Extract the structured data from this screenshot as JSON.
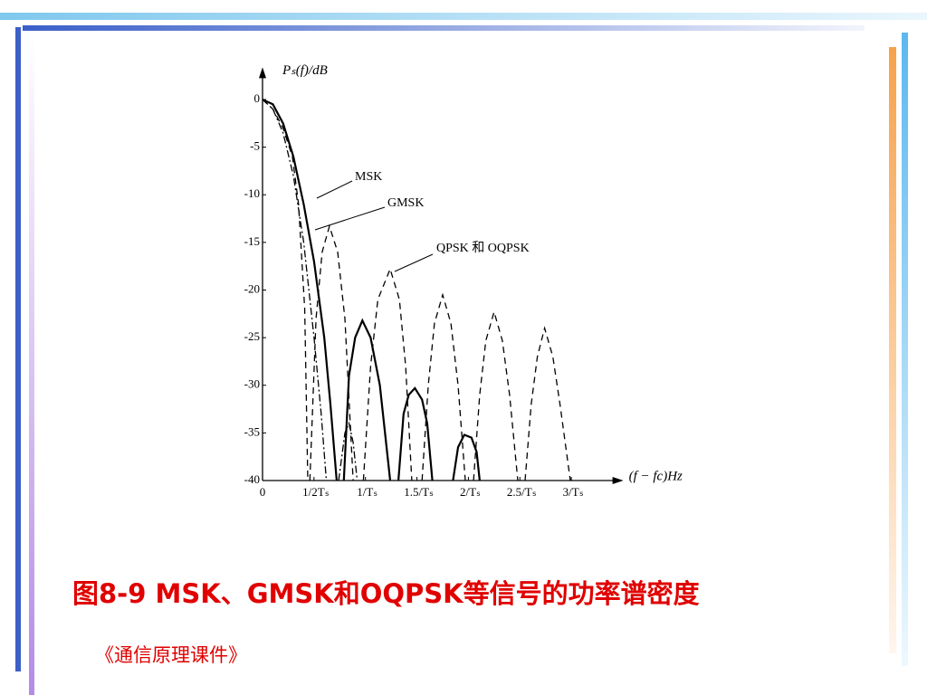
{
  "chart_data": {
    "type": "line",
    "y_label": "Pₛ(f)/dB",
    "x_label": "(f − fc)Hz",
    "xlim": [
      0,
      3.4
    ],
    "ylim": [
      -40,
      3
    ],
    "xticks": [
      0,
      {
        "value": 0.5,
        "label": "1/2Tₛ"
      },
      {
        "value": 1,
        "label": "1/Tₛ"
      },
      {
        "value": 1.5,
        "label": "1.5/Tₛ"
      },
      {
        "value": 2,
        "label": "2/Tₛ"
      },
      {
        "value": 2.5,
        "label": "2.5/Tₛ"
      },
      {
        "value": 3,
        "label": "3/Tₛ"
      }
    ],
    "yticks": [
      0,
      -5,
      -10,
      -15,
      -20,
      -25,
      -30,
      -35,
      -40
    ],
    "series": [
      {
        "name": "MSK",
        "color": "#000000",
        "dash": "solid",
        "x": [
          0,
          0.1,
          0.2,
          0.3,
          0.4,
          0.5,
          0.6,
          0.66,
          0.72,
          null,
          0.79,
          0.84,
          0.9,
          0.97,
          1.05,
          1.14,
          1.24,
          null,
          1.32,
          1.37,
          1.42,
          1.48,
          1.55,
          1.6,
          1.65,
          null,
          1.85,
          1.9,
          1.96,
          2.03,
          2.08,
          2.11
        ],
        "values": [
          0,
          -0.5,
          -2.5,
          -6,
          -11,
          -17,
          -25,
          -32,
          -40,
          null,
          -40,
          -29,
          -25,
          -23.2,
          -25,
          -30,
          -40,
          null,
          -40,
          -33,
          -31,
          -30.3,
          -31.5,
          -34,
          -40,
          null,
          -40,
          -36.5,
          -35.2,
          -35.5,
          -37,
          -40
        ]
      },
      {
        "name": "GMSK",
        "color": "#000000",
        "dash": "dashdot",
        "x": [
          0,
          0.1,
          0.2,
          0.3,
          0.4,
          0.5,
          0.57,
          0.62,
          null,
          0.74,
          0.8,
          0.84,
          0.88,
          0.92
        ],
        "values": [
          0,
          -1,
          -3.5,
          -8,
          -15,
          -25,
          -33,
          -40,
          null,
          -40,
          -35,
          -34,
          -36,
          -40
        ]
      },
      {
        "name": "QPSK 和 OQPSK",
        "color": "#000000",
        "dash": "dashed",
        "x": [
          0,
          0.1,
          0.2,
          0.29,
          0.35,
          0.41,
          0.44,
          null,
          0.46,
          0.52,
          0.58,
          0.65,
          0.73,
          0.8,
          0.88,
          null,
          0.98,
          1.05,
          1.12,
          1.24,
          1.33,
          1.39,
          1.45,
          null,
          1.55,
          1.61,
          1.67,
          1.75,
          1.83,
          1.9,
          1.97,
          null,
          2.05,
          2.11,
          2.17,
          2.25,
          2.33,
          2.4,
          2.48,
          null,
          2.55,
          2.61,
          2.67,
          2.74,
          2.82,
          2.89,
          2.99
        ],
        "values": [
          0,
          -1,
          -3,
          -6,
          -11,
          -22,
          -40,
          null,
          -40,
          -23,
          -16,
          -13.3,
          -16,
          -23,
          -40,
          null,
          -40,
          -28,
          -21,
          -17.8,
          -21,
          -28,
          -40,
          null,
          -40,
          -30,
          -23.5,
          -20.5,
          -23.5,
          -30,
          -40,
          null,
          -40,
          -31,
          -25.3,
          -22.3,
          -25.3,
          -31,
          -40,
          null,
          -40,
          -32,
          -27,
          -24,
          -27,
          -32,
          -40
        ]
      }
    ]
  },
  "slide": {
    "title": "图8-9  MSK、GMSK和OQPSK等信号的功率谱密度",
    "footer": "《通信原理课件》"
  }
}
